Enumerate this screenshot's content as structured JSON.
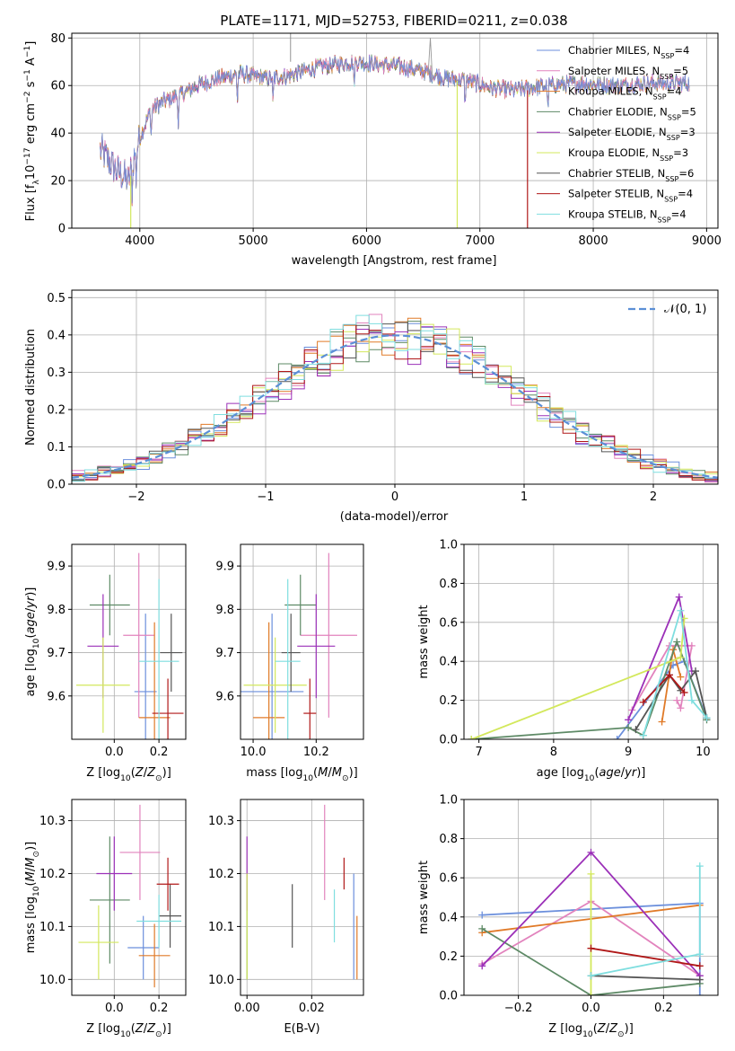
{
  "title": "PLATE=1171, MJD=52753, FIBERID=0211, z=0.038",
  "colors": {
    "Chabrier MILES": "#6b8fdc",
    "Salpeter MILES": "#e283bd",
    "Kroupa MILES": "#e07a28",
    "Chabrier ELODIE": "#5e8a66",
    "Salpeter ELODIE": "#9b30b8",
    "Kroupa ELODIE": "#d3e85c",
    "Chabrier STELIB": "#555555",
    "Salpeter STELIB": "#b01818",
    "Kroupa STELIB": "#7fdedf",
    "gauss": "#5b8fd6"
  },
  "legend1": [
    {
      "label": "Chabrier MILES, N_SSP=4",
      "base": "Chabrier MILES, N",
      "sub": "SSP",
      "tail": "=4",
      "key": "Chabrier MILES"
    },
    {
      "label": "Salpeter MILES, N_SSP=5",
      "base": "Salpeter MILES, N",
      "sub": "SSP",
      "tail": "=5",
      "key": "Salpeter MILES"
    },
    {
      "label": "Kroupa MILES, N_SSP=4",
      "base": "Kroupa MILES, N",
      "sub": "SSP",
      "tail": "=4",
      "key": "Kroupa MILES"
    },
    {
      "label": "Chabrier ELODIE, N_SSP=5",
      "base": "Chabrier ELODIE, N",
      "sub": "SSP",
      "tail": "=5",
      "key": "Chabrier ELODIE"
    },
    {
      "label": "Salpeter ELODIE, N_SSP=3",
      "base": "Salpeter ELODIE, N",
      "sub": "SSP",
      "tail": "=3",
      "key": "Salpeter ELODIE"
    },
    {
      "label": "Kroupa ELODIE, N_SSP=3",
      "base": "Kroupa ELODIE, N",
      "sub": "SSP",
      "tail": "=3",
      "key": "Kroupa ELODIE"
    },
    {
      "label": "Chabrier STELIB, N_SSP=6",
      "base": "Chabrier STELIB, N",
      "sub": "SSP",
      "tail": "=6",
      "key": "Chabrier STELIB"
    },
    {
      "label": "Salpeter STELIB, N_SSP=4",
      "base": "Salpeter STELIB, N",
      "sub": "SSP",
      "tail": "=4",
      "key": "Salpeter STELIB"
    },
    {
      "label": "Kroupa STELIB, N_SSP=4",
      "base": "Kroupa STELIB, N",
      "sub": "SSP",
      "tail": "=4",
      "key": "Kroupa STELIB"
    }
  ],
  "chart_data": [
    {
      "type": "line",
      "title": "PLATE=1171, MJD=52753, FIBERID=0211, z=0.038",
      "xlabel": "wavelength [Angstrom, rest frame]",
      "ylabel": "Flux [f_λ 10^-17 erg cm^-2 s^-1 A^-1]",
      "xlim": [
        3400,
        9100
      ],
      "ylim": [
        0,
        82
      ],
      "xticks": [
        4000,
        5000,
        6000,
        7000,
        8000,
        9000
      ],
      "yticks": [
        0,
        20,
        40,
        60,
        80
      ],
      "continuum": {
        "x": [
          3650,
          3700,
          3800,
          3900,
          3950,
          4000,
          4100,
          4200,
          4300,
          4400,
          4500,
          4700,
          4900,
          5100,
          5300,
          5600,
          5900,
          6100,
          6300,
          6500,
          6700,
          6900,
          7100,
          7300,
          7600,
          7900,
          8200,
          8500,
          8850
        ],
        "y": [
          33,
          30,
          24,
          20,
          30,
          38,
          50,
          53,
          55,
          57,
          60,
          63,
          65,
          63,
          64,
          68,
          70,
          69,
          68,
          66,
          63,
          62,
          59,
          58,
          60,
          61,
          60,
          61,
          61
        ]
      },
      "features": [
        {
          "name": "Salpeter STELIB drop",
          "x": 7420,
          "y": 0
        },
        {
          "name": "Kroupa ELODIE drop",
          "x": 6800,
          "y": 0
        },
        {
          "name": "Kroupa ELODIE blue edge",
          "x": 3920,
          "y": 0
        },
        {
          "name": "emission spike",
          "x": 6563,
          "y": 80
        }
      ]
    },
    {
      "type": "bar",
      "xlabel": "(data-model)/error",
      "ylabel": "Normed distribution",
      "xlim": [
        -2.5,
        2.5
      ],
      "ylim": [
        0,
        0.52
      ],
      "xticks": [
        -2,
        -1,
        0,
        1,
        2
      ],
      "yticks": [
        0.0,
        0.1,
        0.2,
        0.3,
        0.4,
        0.5
      ],
      "bin_width": 0.1,
      "bin_centers": [
        -2.45,
        -2.35,
        -2.25,
        -2.15,
        -2.05,
        -1.95,
        -1.85,
        -1.75,
        -1.65,
        -1.55,
        -1.45,
        -1.35,
        -1.25,
        -1.15,
        -1.05,
        -0.95,
        -0.85,
        -0.75,
        -0.65,
        -0.55,
        -0.45,
        -0.35,
        -0.25,
        -0.15,
        -0.05,
        0.05,
        0.15,
        0.25,
        0.35,
        0.45,
        0.55,
        0.65,
        0.75,
        0.85,
        0.95,
        1.05,
        1.15,
        1.25,
        1.35,
        1.45,
        1.55,
        1.65,
        1.75,
        1.85,
        1.95,
        2.05,
        2.15,
        2.25,
        2.35,
        2.45
      ],
      "reference_curve": {
        "name": "𝒩(0, 1)",
        "label": "𝒩(0, 1)",
        "mean": 0,
        "std": 1
      },
      "legend_position": "top-right"
    },
    {
      "type": "scatter",
      "xlabel": "Z [log10(Z/Z⊙)]",
      "ylabel": "age [log10(age/yr)]",
      "xlim": [
        -0.19,
        0.32
      ],
      "ylim": [
        9.5,
        9.95
      ],
      "xticks": [
        0.0,
        0.2
      ],
      "yticks": [
        9.6,
        9.7,
        9.8,
        9.9
      ],
      "points": [
        {
          "key": "Chabrier MILES",
          "x": 0.14,
          "xerr": 0.05,
          "y": 9.61,
          "yerr": 0.18
        },
        {
          "key": "Salpeter MILES",
          "x": 0.11,
          "xerr": 0.07,
          "y": 9.74,
          "yerr": 0.19
        },
        {
          "key": "Kroupa MILES",
          "x": 0.18,
          "xerr": 0.07,
          "y": 9.55,
          "yerr": 0.22
        },
        {
          "key": "Chabrier ELODIE",
          "x": -0.02,
          "xerr": 0.09,
          "y": 9.81,
          "yerr": 0.07
        },
        {
          "key": "Salpeter ELODIE",
          "x": -0.05,
          "xerr": 0.07,
          "y": 9.715,
          "yerr": 0.12
        },
        {
          "key": "Kroupa ELODIE",
          "x": -0.05,
          "xerr": 0.12,
          "y": 9.625,
          "yerr": 0.11
        },
        {
          "key": "Chabrier STELIB",
          "x": 0.255,
          "xerr": 0.05,
          "y": 9.7,
          "yerr": 0.09
        },
        {
          "key": "Salpeter STELIB",
          "x": 0.24,
          "xerr": 0.07,
          "y": 9.56,
          "yerr": 0.08
        },
        {
          "key": "Kroupa STELIB",
          "x": 0.2,
          "xerr": 0.09,
          "y": 9.68,
          "yerr": 0.19
        }
      ]
    },
    {
      "type": "scatter",
      "xlabel": "mass [log10(M/M⊙)]",
      "ylabel": "",
      "xlim": [
        9.96,
        10.35
      ],
      "ylim": [
        9.5,
        9.95
      ],
      "xticks": [
        10.0,
        10.2
      ],
      "yticks": [
        9.6,
        9.7,
        9.8,
        9.9
      ],
      "points": [
        {
          "key": "Chabrier MILES",
          "x": 10.06,
          "xerr": 0.1,
          "y": 9.61,
          "yerr": 0.18
        },
        {
          "key": "Salpeter MILES",
          "x": 10.24,
          "xerr": 0.09,
          "y": 9.74,
          "yerr": 0.19
        },
        {
          "key": "Kroupa MILES",
          "x": 10.05,
          "xerr": 0.05,
          "y": 9.55,
          "yerr": 0.22
        },
        {
          "key": "Chabrier ELODIE",
          "x": 10.15,
          "xerr": 0.05,
          "y": 9.81,
          "yerr": 0.07
        },
        {
          "key": "Salpeter ELODIE",
          "x": 10.2,
          "xerr": 0.06,
          "y": 9.715,
          "yerr": 0.12
        },
        {
          "key": "Kroupa ELODIE",
          "x": 10.07,
          "xerr": 0.1,
          "y": 9.625,
          "yerr": 0.11
        },
        {
          "key": "Chabrier STELIB",
          "x": 10.12,
          "xerr": 0.03,
          "y": 9.7,
          "yerr": 0.09
        },
        {
          "key": "Salpeter STELIB",
          "x": 10.18,
          "xerr": 0.02,
          "y": 9.56,
          "yerr": 0.08
        },
        {
          "key": "Kroupa STELIB",
          "x": 10.11,
          "xerr": 0.04,
          "y": 9.68,
          "yerr": 0.19
        }
      ]
    },
    {
      "type": "line",
      "xlabel": "age [log10(age/yr)]",
      "ylabel": "mass weight",
      "xlim": [
        6.8,
        10.2
      ],
      "ylim": [
        0,
        1
      ],
      "xticks": [
        7,
        8,
        9,
        10
      ],
      "yticks": [
        0.0,
        0.2,
        0.4,
        0.6,
        0.8,
        1.0
      ],
      "series": [
        {
          "key": "Chabrier MILES",
          "x": [
            8.85,
            9.6,
            9.75,
            10.05
          ],
          "y": [
            0.0,
            0.38,
            0.4,
            0.11
          ]
        },
        {
          "key": "Salpeter MILES",
          "x": [
            9.05,
            9.55,
            9.85,
            9.7,
            9.65
          ],
          "y": [
            0.15,
            0.48,
            0.48,
            0.16,
            0.2
          ]
        },
        {
          "key": "Kroupa MILES",
          "x": [
            9.45,
            9.6,
            9.7
          ],
          "y": [
            0.09,
            0.46,
            0.32
          ]
        },
        {
          "key": "Chabrier ELODIE",
          "x": [
            6.9,
            9.0,
            9.2,
            9.65,
            10.05
          ],
          "y": [
            0.0,
            0.06,
            0.02,
            0.5,
            0.1
          ]
        },
        {
          "key": "Salpeter ELODIE",
          "x": [
            9.0,
            9.68,
            9.85
          ],
          "y": [
            0.1,
            0.73,
            0.35
          ]
        },
        {
          "key": "Kroupa ELODIE",
          "x": [
            6.9,
            9.7,
            9.75
          ],
          "y": [
            0.0,
            0.42,
            0.62
          ]
        },
        {
          "key": "Chabrier STELIB",
          "x": [
            9.1,
            9.55,
            9.7,
            9.9,
            10.05
          ],
          "y": [
            0.05,
            0.33,
            0.25,
            0.35,
            0.11
          ]
        },
        {
          "key": "Salpeter STELIB",
          "x": [
            9.2,
            9.55,
            9.75
          ],
          "y": [
            0.19,
            0.33,
            0.24
          ]
        },
        {
          "key": "Kroupa STELIB",
          "x": [
            9.2,
            9.7,
            9.85,
            10.05
          ],
          "y": [
            0.02,
            0.66,
            0.2,
            0.11
          ]
        }
      ]
    },
    {
      "type": "scatter",
      "xlabel": "Z [log10(Z/Z⊙)]",
      "ylabel": "mass [log10(M/M⊙)]",
      "xlim": [
        -0.19,
        0.32
      ],
      "ylim": [
        9.97,
        10.34
      ],
      "xticks": [
        0.0,
        0.2
      ],
      "yticks": [
        10.0,
        10.1,
        10.2,
        10.3
      ],
      "points": [
        {
          "key": "Chabrier MILES",
          "x": 0.13,
          "xerr": 0.07,
          "y": 10.06,
          "yerr": 0.06
        },
        {
          "key": "Salpeter MILES",
          "x": 0.115,
          "xerr": 0.09,
          "y": 10.24,
          "yerr": 0.09
        },
        {
          "key": "Kroupa MILES",
          "x": 0.18,
          "xerr": 0.07,
          "y": 10.045,
          "yerr": 0.06
        },
        {
          "key": "Chabrier ELODIE",
          "x": -0.02,
          "xerr": 0.09,
          "y": 10.15,
          "yerr": 0.12
        },
        {
          "key": "Salpeter ELODIE",
          "x": 0.0,
          "xerr": 0.08,
          "y": 10.2,
          "yerr": 0.07
        },
        {
          "key": "Kroupa ELODIE",
          "x": -0.07,
          "xerr": 0.09,
          "y": 10.07,
          "yerr": 0.07
        },
        {
          "key": "Chabrier STELIB",
          "x": 0.25,
          "xerr": 0.05,
          "y": 10.12,
          "yerr": 0.06
        },
        {
          "key": "Salpeter STELIB",
          "x": 0.24,
          "xerr": 0.05,
          "y": 10.18,
          "yerr": 0.05
        },
        {
          "key": "Kroupa STELIB",
          "x": 0.2,
          "xerr": 0.1,
          "y": 10.11,
          "yerr": 0.05
        }
      ]
    },
    {
      "type": "scatter",
      "xlabel": "E(B-V)",
      "ylabel": "",
      "xlim": [
        -0.002,
        0.036
      ],
      "ylim": [
        9.97,
        10.34
      ],
      "xticks": [
        0.0,
        0.02
      ],
      "yticks": [
        10.0,
        10.1,
        10.2,
        10.3
      ],
      "points": [
        {
          "key": "Chabrier MILES",
          "x": 0.033,
          "y": 10.1,
          "yerr": 0.1
        },
        {
          "key": "Salpeter MILES",
          "x": 0.024,
          "y": 10.24,
          "yerr": 0.09
        },
        {
          "key": "Kroupa MILES",
          "x": 0.034,
          "y": 10.06,
          "yerr": 0.06
        },
        {
          "key": "Chabrier ELODIE",
          "x": 0.0,
          "y": 10.1,
          "yerr": 0.1
        },
        {
          "key": "Salpeter ELODIE",
          "x": 0.0,
          "y": 10.2,
          "yerr": 0.07
        },
        {
          "key": "Kroupa ELODIE",
          "x": 0.0,
          "y": 10.1,
          "yerr": 0.1
        },
        {
          "key": "Chabrier STELIB",
          "x": 0.014,
          "y": 10.12,
          "yerr": 0.06
        },
        {
          "key": "Salpeter STELIB",
          "x": 0.03,
          "y": 10.2,
          "yerr": 0.03
        },
        {
          "key": "Kroupa STELIB",
          "x": 0.027,
          "y": 10.12,
          "yerr": 0.05
        }
      ]
    },
    {
      "type": "line",
      "xlabel": "Z [log10(Z/Z⊙)]",
      "ylabel": "mass weight",
      "xlim": [
        -0.35,
        0.35
      ],
      "ylim": [
        0,
        1
      ],
      "xticks": [
        -0.2,
        0.0,
        0.2
      ],
      "yticks": [
        0.0,
        0.2,
        0.4,
        0.6,
        0.8,
        1.0
      ],
      "series": [
        {
          "key": "Chabrier MILES",
          "x": [
            -0.3,
            0.3,
            0.3
          ],
          "y": [
            0.41,
            0.47,
            0.0
          ]
        },
        {
          "key": "Salpeter MILES",
          "x": [
            -0.3,
            0.0,
            0.3
          ],
          "y": [
            0.16,
            0.48,
            0.1
          ]
        },
        {
          "key": "Kroupa MILES",
          "x": [
            -0.3,
            0.3
          ],
          "y": [
            0.32,
            0.46
          ]
        },
        {
          "key": "Chabrier ELODIE",
          "x": [
            -0.3,
            0.0,
            0.3
          ],
          "y": [
            0.34,
            0.0,
            0.06
          ]
        },
        {
          "key": "Salpeter ELODIE",
          "x": [
            -0.3,
            0.0,
            0.3
          ],
          "y": [
            0.15,
            0.73,
            0.1
          ]
        },
        {
          "key": "Kroupa ELODIE",
          "x": [
            0.0,
            0.0
          ],
          "y": [
            0.0,
            0.62
          ]
        },
        {
          "key": "Chabrier STELIB",
          "x": [
            0.0,
            0.3
          ],
          "y": [
            0.1,
            0.08
          ]
        },
        {
          "key": "Salpeter STELIB",
          "x": [
            0.0,
            0.3
          ],
          "y": [
            0.24,
            0.15
          ]
        },
        {
          "key": "Kroupa STELIB",
          "x": [
            0.0,
            0.3,
            0.3
          ],
          "y": [
            0.1,
            0.21,
            0.66
          ]
        }
      ]
    }
  ]
}
